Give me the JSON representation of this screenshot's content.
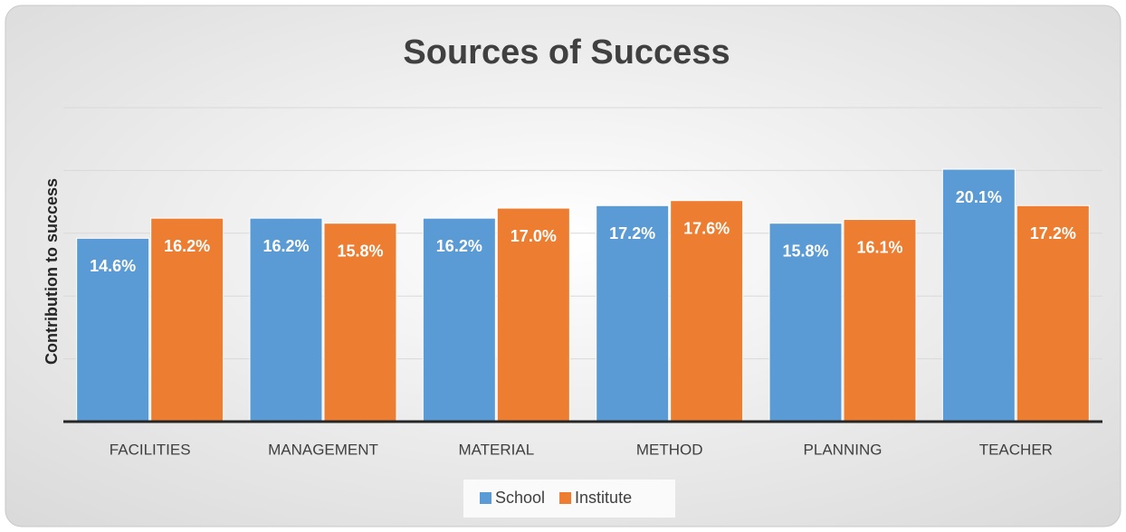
{
  "chart_data": {
    "type": "bar",
    "title": "Sources of Success",
    "y_label": "Contribution to success",
    "categories": [
      "FACILITIES",
      "MANAGEMENT",
      "MATERIAL",
      "METHOD",
      "PLANNING",
      "TEACHER"
    ],
    "series": [
      {
        "name": "School",
        "color": "#5b9bd5",
        "values": [
          14.6,
          16.2,
          16.2,
          17.2,
          15.8,
          20.1
        ],
        "value_labels": [
          "14.6%",
          "16.2%",
          "16.2%",
          "17.2%",
          "15.8%",
          "20.1%"
        ]
      },
      {
        "name": "Institute",
        "color": "#ed7d31",
        "values": [
          16.2,
          15.8,
          17.0,
          17.6,
          16.1,
          17.2
        ],
        "value_labels": [
          "16.2%",
          "15.8%",
          "17.0%",
          "17.6%",
          "16.1%",
          "17.2%"
        ]
      }
    ],
    "ylim": [
      0,
      25
    ],
    "yticks": [
      0,
      5,
      10,
      15,
      20,
      25
    ],
    "grid": true,
    "legend": "bottom"
  }
}
